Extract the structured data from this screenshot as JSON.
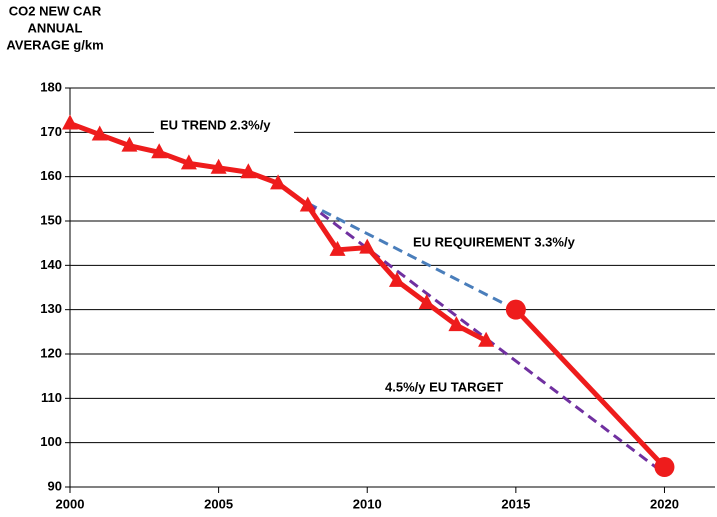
{
  "chart_data": {
    "type": "line",
    "y_label": [
      "CO2 NEW CAR",
      "ANNUAL",
      "AVERAGE g/km"
    ],
    "annotations": [
      "EU TREND 2.3%/y",
      "EU REQUIREMENT 3.3%/y",
      "4.5%/y  EU TARGET"
    ],
    "xlim": [
      2000,
      2021.7
    ],
    "xticks": [
      2000,
      2005,
      2010,
      2015,
      2020
    ],
    "ylim": [
      90,
      180
    ],
    "yticks": [
      90,
      100,
      110,
      120,
      130,
      140,
      150,
      160,
      170,
      180
    ],
    "grid": true,
    "series": [
      {
        "color": "#4a7ebb",
        "dash": true,
        "marker": "none",
        "x": [
          2008,
          2015
        ],
        "values": [
          154,
          130
        ]
      },
      {
        "color": "#7030a0",
        "dash": true,
        "marker": "none",
        "x": [
          2008,
          2020
        ],
        "values": [
          154,
          93
        ]
      },
      {
        "color": "#ee1c1c",
        "dash": false,
        "marker": "triangle",
        "x": [
          2000,
          2001,
          2002,
          2003,
          2004,
          2005,
          2006,
          2007,
          2008,
          2009,
          2010,
          2011,
          2012,
          2013,
          2014
        ],
        "values": [
          172,
          169.5,
          167,
          165.5,
          163,
          162,
          161,
          158.5,
          153.5,
          143.5,
          144,
          136.5,
          131.5,
          126.5,
          123
        ]
      },
      {
        "color": "#ee1c1c",
        "dash": false,
        "marker": "circle",
        "x": [
          2015,
          2020
        ],
        "values": [
          130,
          94.5
        ]
      }
    ]
  }
}
